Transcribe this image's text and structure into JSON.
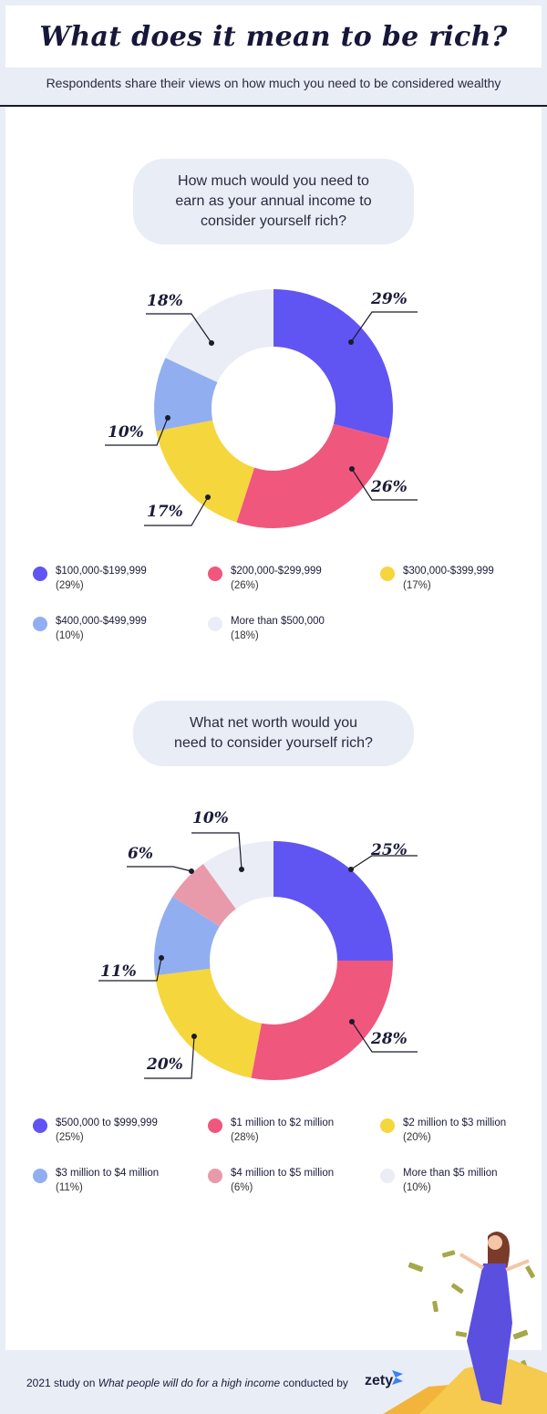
{
  "title": "What does it mean to be rich?",
  "subtitle": "Respondents share their views on how much you need to be considered wealthy",
  "colors": {
    "c1": "#6055f2",
    "c2": "#f0577d",
    "c3": "#f5d63d",
    "c4": "#91aef0",
    "c5": "#eaedf5",
    "c6": "#e99aaa"
  },
  "footer": {
    "prefix": "2021 study on",
    "study": "What people will do for a high income",
    "suffix": "conducted by",
    "brand": "zety"
  },
  "chart_data": [
    {
      "type": "pie",
      "title": "How much would you need to\nearn as your annual income to\nconsider yourself rich?",
      "categories": [
        "$100,000-$199,999",
        "$200,000-$299,999",
        "$300,000-$399,999",
        "$400,000-$499,999",
        "More than $500,000"
      ],
      "values": [
        29,
        26,
        17,
        10,
        18
      ],
      "labels": [
        "29%",
        "26%",
        "17%",
        "10%",
        "18%"
      ],
      "legend_pct": [
        "(29%)",
        "(26%)",
        "(17%)",
        "(10%)",
        "(18%)"
      ],
      "colors": [
        "#6055f2",
        "#f0577d",
        "#f5d63d",
        "#91aef0",
        "#eaedf5"
      ],
      "legend_position": "below"
    },
    {
      "type": "pie",
      "title": "What net worth would you\nneed to consider yourself rich?",
      "categories": [
        "$500,000 to $999,999",
        "$1 million to $2 million",
        "$2 million to $3 million",
        "$3 million to $4 million",
        "$4 million to $5 million",
        "More than $5 million"
      ],
      "values": [
        25,
        28,
        20,
        11,
        6,
        10
      ],
      "labels": [
        "25%",
        "28%",
        "20%",
        "11%",
        "6%",
        "10%"
      ],
      "legend_pct": [
        "(25%)",
        "(28%)",
        "(20%)",
        "(11%)",
        "(6%)",
        "(10%)"
      ],
      "colors": [
        "#6055f2",
        "#f0577d",
        "#f5d63d",
        "#91aef0",
        "#e99aaa",
        "#eaedf5"
      ],
      "legend_position": "below"
    }
  ]
}
